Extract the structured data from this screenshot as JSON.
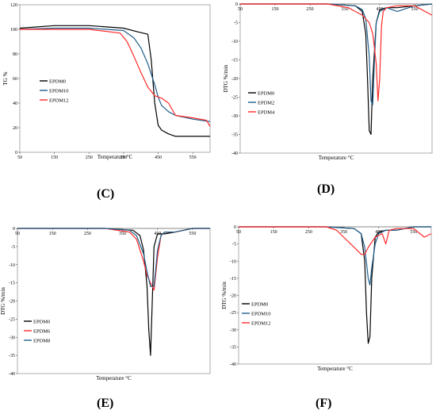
{
  "panels": {
    "C": "(C)",
    "D": "(D)",
    "E": "(E)",
    "F": "(F)"
  },
  "chart_data": [
    {
      "id": "C",
      "type": "line",
      "xlabel": "Temperature °C",
      "ylabel": "TG %",
      "xlim": [
        50,
        600
      ],
      "ylim": [
        0,
        120
      ],
      "xticks": [
        "50",
        "150",
        "250",
        "350",
        "450",
        "550"
      ],
      "yticks": [
        "0",
        "20",
        "40",
        "60",
        "80",
        "100",
        "120"
      ],
      "legend_position": "left-middle",
      "grid": false,
      "series": [
        {
          "name": "EPDM0",
          "color": "#000000",
          "x": [
            50,
            150,
            250,
            350,
            390,
            420,
            430,
            440,
            450,
            460,
            480,
            500,
            550,
            600
          ],
          "y": [
            101,
            103,
            103,
            101,
            98,
            96,
            75,
            40,
            22,
            18,
            15,
            13,
            13,
            13
          ]
        },
        {
          "name": "EPDM10",
          "color": "#1f5f8b",
          "x": [
            50,
            150,
            250,
            350,
            380,
            400,
            420,
            440,
            450,
            460,
            480,
            500,
            550,
            600
          ],
          "y": [
            100,
            101,
            101,
            99,
            93,
            85,
            72,
            55,
            45,
            38,
            33,
            30,
            27,
            25
          ]
        },
        {
          "name": "EPDM12",
          "color": "#ff2a2a",
          "x": [
            50,
            150,
            250,
            340,
            360,
            380,
            400,
            420,
            440,
            460,
            480,
            500,
            550,
            590,
            600
          ],
          "y": [
            100,
            100,
            100,
            97,
            90,
            78,
            65,
            53,
            46,
            44,
            40,
            30,
            28,
            26,
            21
          ]
        }
      ]
    },
    {
      "id": "D",
      "type": "line",
      "xlabel": "Temperature °C",
      "ylabel": "DTG %/min",
      "xlim": [
        50,
        600
      ],
      "ylim": [
        -40,
        0
      ],
      "xticks": [
        "50",
        "150",
        "250",
        "350",
        "450",
        "550"
      ],
      "yticks": [
        "0",
        "-5",
        "-10",
        "-15",
        "-20",
        "-25",
        "-30",
        "-35",
        "-40"
      ],
      "legend_position": "left-middle",
      "grid": false,
      "series": [
        {
          "name": "EPDM0",
          "color": "#000000",
          "x": [
            50,
            300,
            380,
            400,
            410,
            415,
            420,
            425,
            430,
            440,
            450,
            470,
            500,
            550,
            600
          ],
          "y": [
            0,
            0,
            -0.5,
            -2,
            -8,
            -20,
            -34,
            -35,
            -20,
            -5,
            -1.5,
            -1,
            -1,
            -0.5,
            0
          ]
        },
        {
          "name": "EPDM2",
          "color": "#1f5f8b",
          "x": [
            50,
            300,
            380,
            400,
            410,
            420,
            425,
            430,
            435,
            440,
            450,
            470,
            500,
            550,
            600
          ],
          "y": [
            0,
            0,
            -0.5,
            -1.5,
            -4,
            -14,
            -26,
            -27,
            -15,
            -5,
            -2,
            -1,
            -2,
            -0.5,
            0
          ]
        },
        {
          "name": "EPDM4",
          "color": "#ff2a2a",
          "x": [
            50,
            300,
            360,
            380,
            400,
            420,
            430,
            440,
            445,
            450,
            455,
            460,
            470,
            500,
            550,
            600
          ],
          "y": [
            0,
            0,
            -1,
            -2,
            -3,
            -5,
            -8,
            -16,
            -26,
            -20,
            -6,
            -2,
            -1,
            -0.5,
            -0.5,
            -3
          ]
        }
      ]
    },
    {
      "id": "E",
      "type": "line",
      "xlabel": "Temperature °C",
      "ylabel": "DTG %/min",
      "xlim": [
        50,
        600
      ],
      "ylim": [
        -40,
        0
      ],
      "xticks": [
        "50",
        "150",
        "250",
        "350",
        "450",
        "550"
      ],
      "yticks": [
        "0",
        "-5",
        "-10",
        "-15",
        "-20",
        "-25",
        "-30",
        "-35",
        "-40"
      ],
      "legend_position": "left-middle",
      "grid": false,
      "series": [
        {
          "name": "EPDM0",
          "color": "#000000",
          "x": [
            50,
            300,
            380,
            400,
            410,
            420,
            425,
            430,
            435,
            440,
            450,
            470,
            500,
            550,
            600
          ],
          "y": [
            0,
            0,
            -0.5,
            -2,
            -6,
            -16,
            -28,
            -35,
            -20,
            -5,
            -1.5,
            -1.5,
            -1,
            0,
            0
          ]
        },
        {
          "name": "EPDM6",
          "color": "#ff2a2a",
          "x": [
            50,
            300,
            370,
            390,
            410,
            420,
            430,
            440,
            450,
            460,
            470,
            500,
            550,
            600
          ],
          "y": [
            0,
            0,
            -1,
            -3,
            -9,
            -13,
            -15,
            -17,
            -8,
            -2,
            -1,
            -1,
            0,
            0
          ]
        },
        {
          "name": "EPDM8",
          "color": "#1f5f8b",
          "x": [
            50,
            300,
            370,
            390,
            410,
            420,
            430,
            440,
            450,
            460,
            470,
            500,
            550,
            600
          ],
          "y": [
            0,
            0,
            -0.5,
            -2,
            -7,
            -12,
            -16,
            -16,
            -6,
            -2,
            -1,
            -1,
            0,
            0
          ]
        }
      ]
    },
    {
      "id": "F",
      "type": "line",
      "xlabel": "Temperature °C",
      "ylabel": "DTG %/min",
      "xlim": [
        50,
        600
      ],
      "ylim": [
        -40,
        0
      ],
      "xticks": [
        "50",
        "150",
        "250",
        "350",
        "450",
        "550"
      ],
      "yticks": [
        "0",
        "-5",
        "-10",
        "-15",
        "-20",
        "-25",
        "-30",
        "-35",
        "-40"
      ],
      "legend_position": "left-middle",
      "grid": false,
      "series": [
        {
          "name": "EPDM0",
          "color": "#000000",
          "x": [
            50,
            300,
            380,
            400,
            410,
            415,
            420,
            425,
            430,
            440,
            450,
            470,
            500,
            550,
            600
          ],
          "y": [
            0,
            0,
            -0.5,
            -2,
            -10,
            -25,
            -34,
            -32,
            -15,
            -3,
            -1.5,
            -1,
            -1,
            0,
            0
          ]
        },
        {
          "name": "EPDM10",
          "color": "#1f5f8b",
          "x": [
            50,
            300,
            380,
            400,
            410,
            420,
            425,
            430,
            440,
            450,
            470,
            500,
            550,
            600
          ],
          "y": [
            0,
            0,
            -0.5,
            -2,
            -6,
            -15,
            -17,
            -12,
            -5,
            -2,
            -1,
            -1,
            0,
            0
          ]
        },
        {
          "name": "EPDM12",
          "color": "#ff2a2a",
          "x": [
            50,
            300,
            330,
            350,
            370,
            390,
            400,
            410,
            420,
            440,
            460,
            470,
            480,
            500,
            550,
            580,
            600
          ],
          "y": [
            0,
            0,
            -1,
            -3,
            -5,
            -7,
            -8,
            -8,
            -6,
            -3,
            -2,
            -5,
            -1,
            -0.5,
            -0.5,
            -3,
            -2
          ]
        }
      ]
    }
  ]
}
